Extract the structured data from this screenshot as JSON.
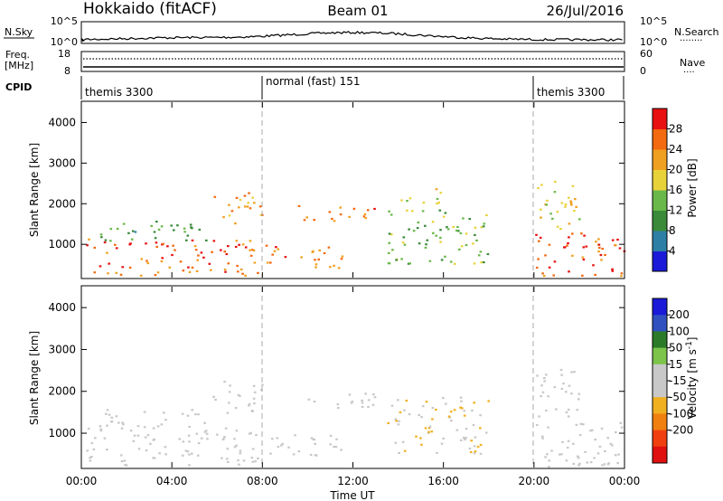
{
  "header": {
    "site": "Hokkaido (fitACF)",
    "beam": "Beam 01",
    "date": "26/Jul/2016"
  },
  "strips": {
    "nsky": {
      "label": "N.Sky",
      "left_ticks": [
        "10^5",
        "10^0"
      ],
      "right_ticks": [
        "10^5",
        "10^0"
      ],
      "right_label": "N.Search",
      "legend_line": "········"
    },
    "freq": {
      "label_lines": [
        "Freq.",
        "[MHz]"
      ],
      "left_ticks": [
        "18",
        "8"
      ],
      "right_ticks": [
        "60",
        "0"
      ],
      "right_label": "Nave",
      "legend_line": "····"
    },
    "cpid": {
      "label": "CPID",
      "segments": [
        {
          "name": "themis 3300",
          "start_hour": 0,
          "end_hour": 8
        },
        {
          "name": "normal (fast) 151",
          "start_hour": 8,
          "end_hour": 20
        },
        {
          "name": "themis 3300",
          "start_hour": 20,
          "end_hour": 24
        }
      ]
    }
  },
  "colors": {
    "power_scale": [
      "#1a1ad8",
      "#2e7fa6",
      "#3a8a3a",
      "#6bb84a",
      "#e8d23a",
      "#f0a020",
      "#f36a10",
      "#e81010"
    ],
    "velocity_scale": [
      "#1a1ad8",
      "#3050c0",
      "#2a7a2a",
      "#7cc44a",
      "#c8c8c8",
      "#c8c8c8",
      "#f0b020",
      "#f08010",
      "#f04010",
      "#e01010"
    ]
  },
  "chart_data": [
    {
      "type": "heatmap",
      "name": "power",
      "xlabel": "Time UT",
      "ylabel": "Slant Range [km]",
      "colorbar_label": "Power [dB]",
      "x_ticks": [
        "00:00",
        "04:00",
        "08:00",
        "12:00",
        "16:00",
        "20:00",
        "00:00"
      ],
      "x_range_hours": [
        0,
        24
      ],
      "ylim": [
        180,
        4500
      ],
      "y_ticks": [
        1000,
        2000,
        3000,
        4000
      ],
      "colorbar_ticks": [
        4,
        8,
        12,
        16,
        20,
        24,
        28
      ],
      "colorbar_range": [
        0,
        32
      ],
      "grid": false,
      "regions": [
        {
          "t0": 0.2,
          "t1": 7.8,
          "r0": 250,
          "r1": 1150,
          "level": 26
        },
        {
          "t0": 0.2,
          "t1": 5.5,
          "r0": 1100,
          "r1": 1600,
          "level": 12
        },
        {
          "t0": 5.8,
          "t1": 8.0,
          "r0": 1500,
          "r1": 2300,
          "level": 23
        },
        {
          "t0": 8.0,
          "t1": 11.5,
          "r0": 400,
          "r1": 1000,
          "level": 25
        },
        {
          "t0": 9.5,
          "t1": 13.0,
          "r0": 1600,
          "r1": 2000,
          "level": 24
        },
        {
          "t0": 13.5,
          "t1": 18.0,
          "r0": 500,
          "r1": 1900,
          "level": 14
        },
        {
          "t0": 14.0,
          "t1": 16.0,
          "r0": 2000,
          "r1": 2400,
          "level": 18
        },
        {
          "t0": 20.0,
          "t1": 24.0,
          "r0": 200,
          "r1": 1300,
          "level": 27
        },
        {
          "t0": 20.0,
          "t1": 22.0,
          "r0": 1400,
          "r1": 2600,
          "level": 18
        }
      ]
    },
    {
      "type": "heatmap",
      "name": "velocity",
      "xlabel": "Time UT",
      "ylabel": "Slant Range [km]",
      "colorbar_label": "Velocity [m s^-1]",
      "x_ticks": [
        "00:00",
        "04:00",
        "08:00",
        "12:00",
        "16:00",
        "20:00",
        "00:00"
      ],
      "x_range_hours": [
        0,
        24
      ],
      "ylim": [
        180,
        4500
      ],
      "y_ticks": [
        1000,
        2000,
        3000,
        4000
      ],
      "colorbar_ticks": [
        "200",
        "100",
        "50",
        "15",
        "-15",
        "-50",
        "-100",
        "-200"
      ],
      "grid": false,
      "regions": [
        {
          "t0": 0.2,
          "t1": 7.8,
          "r0": 250,
          "r1": 1150,
          "level": 0
        },
        {
          "t0": 0.2,
          "t1": 5.5,
          "r0": 1100,
          "r1": 1600,
          "level": 0
        },
        {
          "t0": 5.8,
          "t1": 8.0,
          "r0": 1500,
          "r1": 2300,
          "level": 0
        },
        {
          "t0": 8.0,
          "t1": 11.5,
          "r0": 400,
          "r1": 1000,
          "level": 0
        },
        {
          "t0": 9.5,
          "t1": 13.0,
          "r0": 1600,
          "r1": 2000,
          "level": 0
        },
        {
          "t0": 13.5,
          "t1": 18.0,
          "r0": 500,
          "r1": 1900,
          "level": -40
        },
        {
          "t0": 20.0,
          "t1": 24.0,
          "r0": 200,
          "r1": 1300,
          "level": 0
        },
        {
          "t0": 20.0,
          "t1": 22.0,
          "r0": 1400,
          "r1": 2600,
          "level": 0
        }
      ]
    }
  ]
}
